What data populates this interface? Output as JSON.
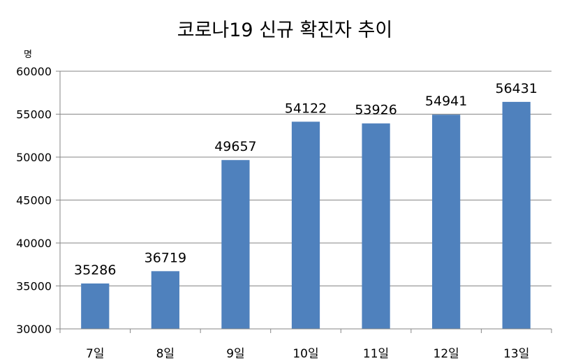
{
  "chart_data": {
    "type": "bar",
    "title": "코로나19 신규 확진자 추이",
    "ylabel": "명",
    "xlabel": "",
    "categories": [
      "7일",
      "8일",
      "9일",
      "10일",
      "11일",
      "12일",
      "13일"
    ],
    "values": [
      35286,
      36719,
      49657,
      54122,
      53926,
      54941,
      56431
    ],
    "ylim": [
      30000,
      60000
    ],
    "yticks": [
      30000,
      35000,
      40000,
      45000,
      50000,
      55000,
      60000
    ],
    "grid": true,
    "legend": "none",
    "colors": {
      "bar": "#4F81BD",
      "grid": "#868686",
      "axis": "#868686"
    }
  }
}
